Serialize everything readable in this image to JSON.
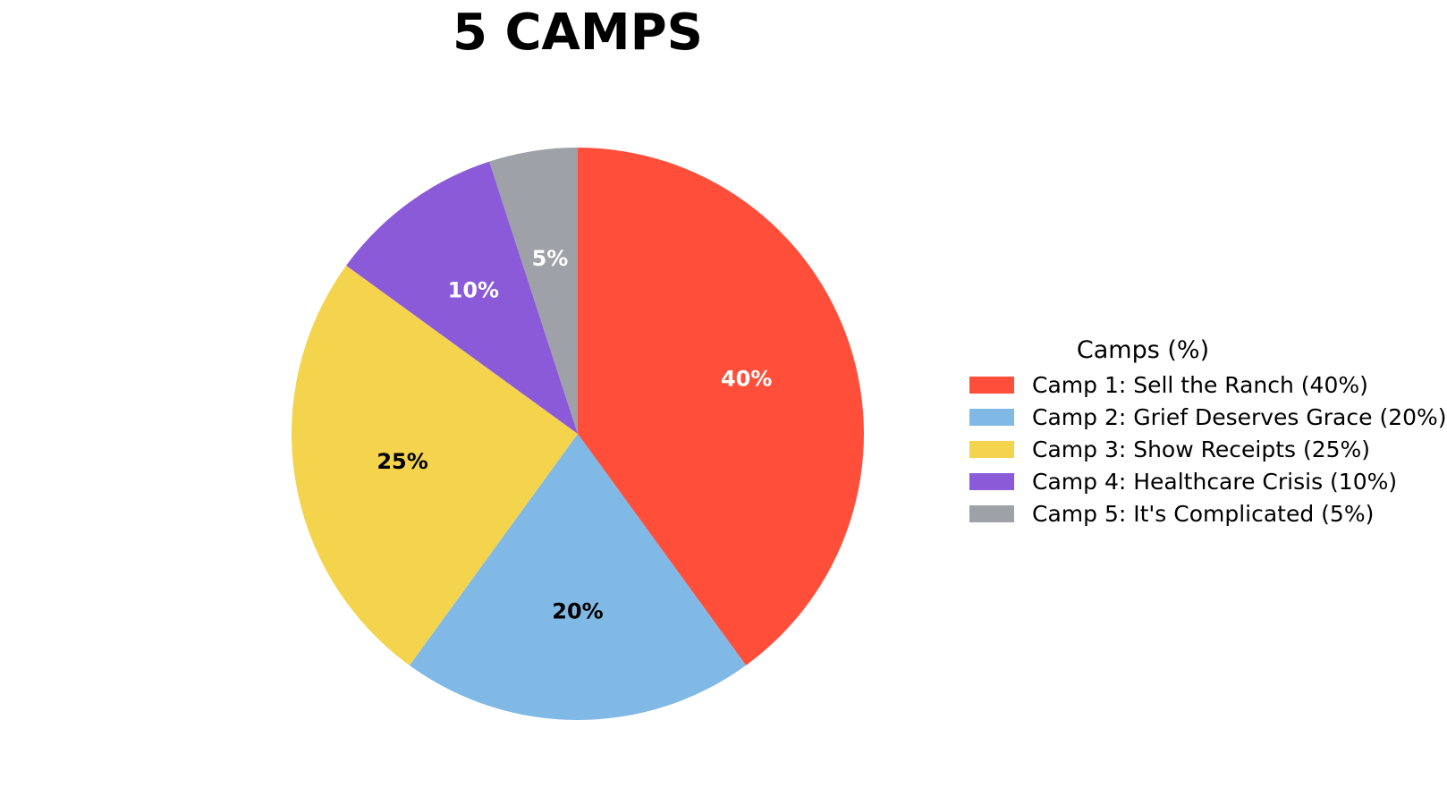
{
  "chart_data": {
    "type": "pie",
    "title": "5 CAMPS",
    "legend_title": "Camps (%)",
    "legend_placement": "right",
    "start_angle_deg": 90,
    "direction": "clockwise",
    "slices": [
      {
        "label": "Camp 1: Sell the Ranch (40%)",
        "value": 40,
        "pct_label": "40%",
        "color": "#ff4f3b",
        "text_color": "#ffffff"
      },
      {
        "label": "Camp 2: Grief Deserves Grace (20%)",
        "value": 20,
        "pct_label": "20%",
        "color": "#80b9e5",
        "text_color": "#000000"
      },
      {
        "label": "Camp 3: Show Receipts (25%)",
        "value": 25,
        "pct_label": "25%",
        "color": "#f4d44d",
        "text_color": "#000000"
      },
      {
        "label": "Camp 4: Healthcare Crisis (10%)",
        "value": 10,
        "pct_label": "10%",
        "color": "#8b5ad8",
        "text_color": "#ffffff"
      },
      {
        "label": "Camp 5: It's Complicated (5%)",
        "value": 5,
        "pct_label": "5%",
        "color": "#9ea1a7",
        "text_color": "#ffffff"
      }
    ]
  }
}
